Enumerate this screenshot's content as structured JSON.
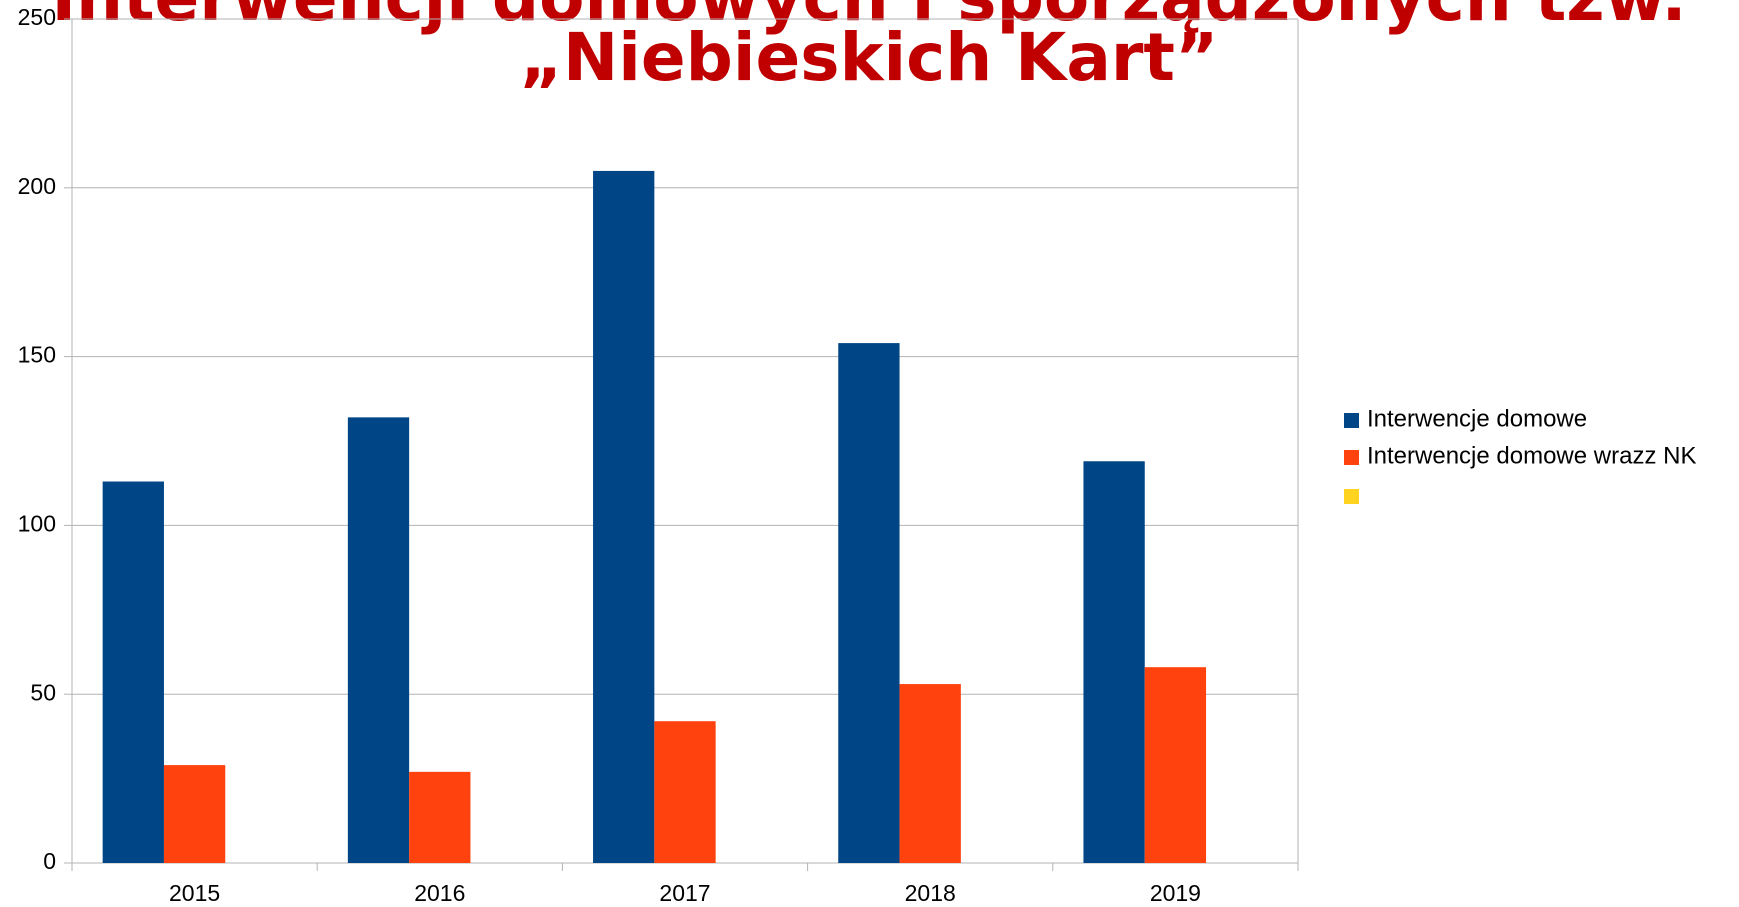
{
  "chart_data": {
    "type": "bar",
    "title": [
      "Interwencji domowych i sporządzonych tzw.",
      "„Niebieskich Kart”"
    ],
    "categories": [
      "2015",
      "2016",
      "2017",
      "2018",
      "2019"
    ],
    "series": [
      {
        "name": "Interwencje domowe",
        "color": "#004586",
        "values": [
          113,
          132,
          205,
          154,
          119
        ]
      },
      {
        "name": "Interwencje domowe wrazz NK",
        "color": "#ff420e",
        "values": [
          29,
          27,
          42,
          53,
          58
        ]
      }
    ],
    "ylim": [
      0,
      250
    ],
    "yticks": [
      0,
      50,
      100,
      150,
      200,
      250
    ],
    "grid": true,
    "legend": "right"
  }
}
